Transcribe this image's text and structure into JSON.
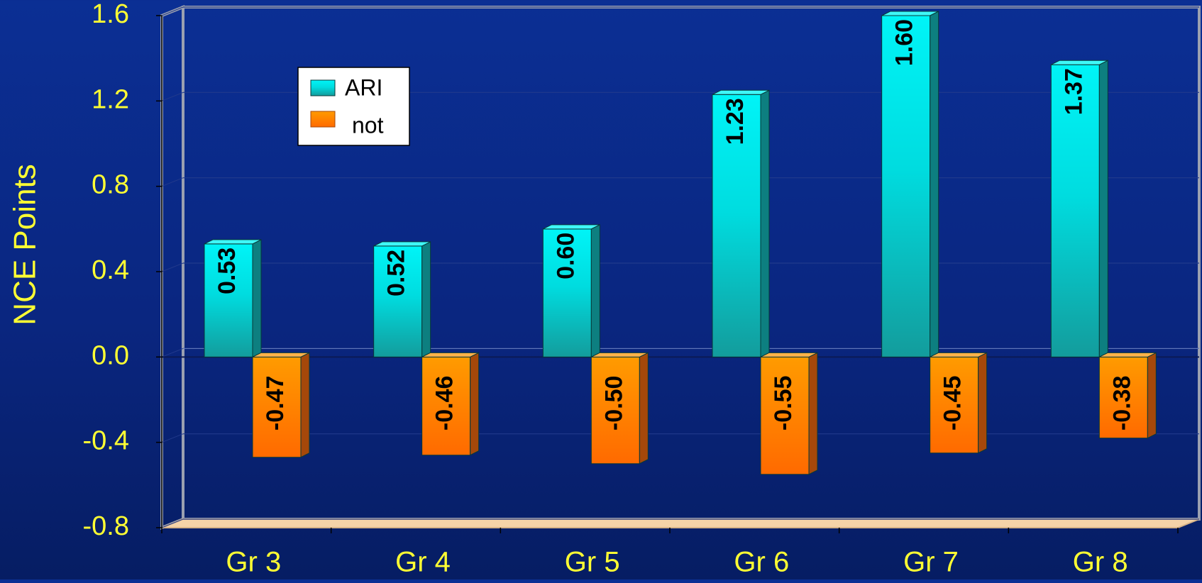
{
  "chart_data": {
    "type": "bar",
    "title": "",
    "xlabel": "",
    "ylabel": "NCE Points",
    "categories": [
      "Gr 3",
      "Gr 4",
      "Gr 5",
      "Gr 6",
      "Gr 7",
      "Gr 8"
    ],
    "series": [
      {
        "name": "ARI",
        "values": [
          0.53,
          0.52,
          0.6,
          1.23,
          1.6,
          1.37
        ],
        "labels": [
          "0.53",
          "0.52",
          "0.60",
          "1.23",
          "1.60",
          "1.37"
        ],
        "color": "#00e5e8"
      },
      {
        "name": "not",
        "values": [
          -0.47,
          -0.46,
          -0.5,
          -0.55,
          -0.45,
          -0.38
        ],
        "labels": [
          "-0.47",
          "-0.46",
          "-0.50",
          "-0.55",
          "-0.45",
          "-0.38"
        ],
        "color": "#ff8a00"
      }
    ],
    "ylim": [
      -0.8,
      1.6
    ],
    "yticks": [
      "1.6",
      "1.2",
      "0.8",
      "0.4",
      "0.0",
      "-0.4",
      "-0.8"
    ],
    "grid": true,
    "legend_position": "top-left",
    "colors": {
      "axis_text": "#ffff33",
      "data_label": "#000000",
      "frame": "#9aa0b0",
      "floor": "#f5d3a8"
    }
  }
}
